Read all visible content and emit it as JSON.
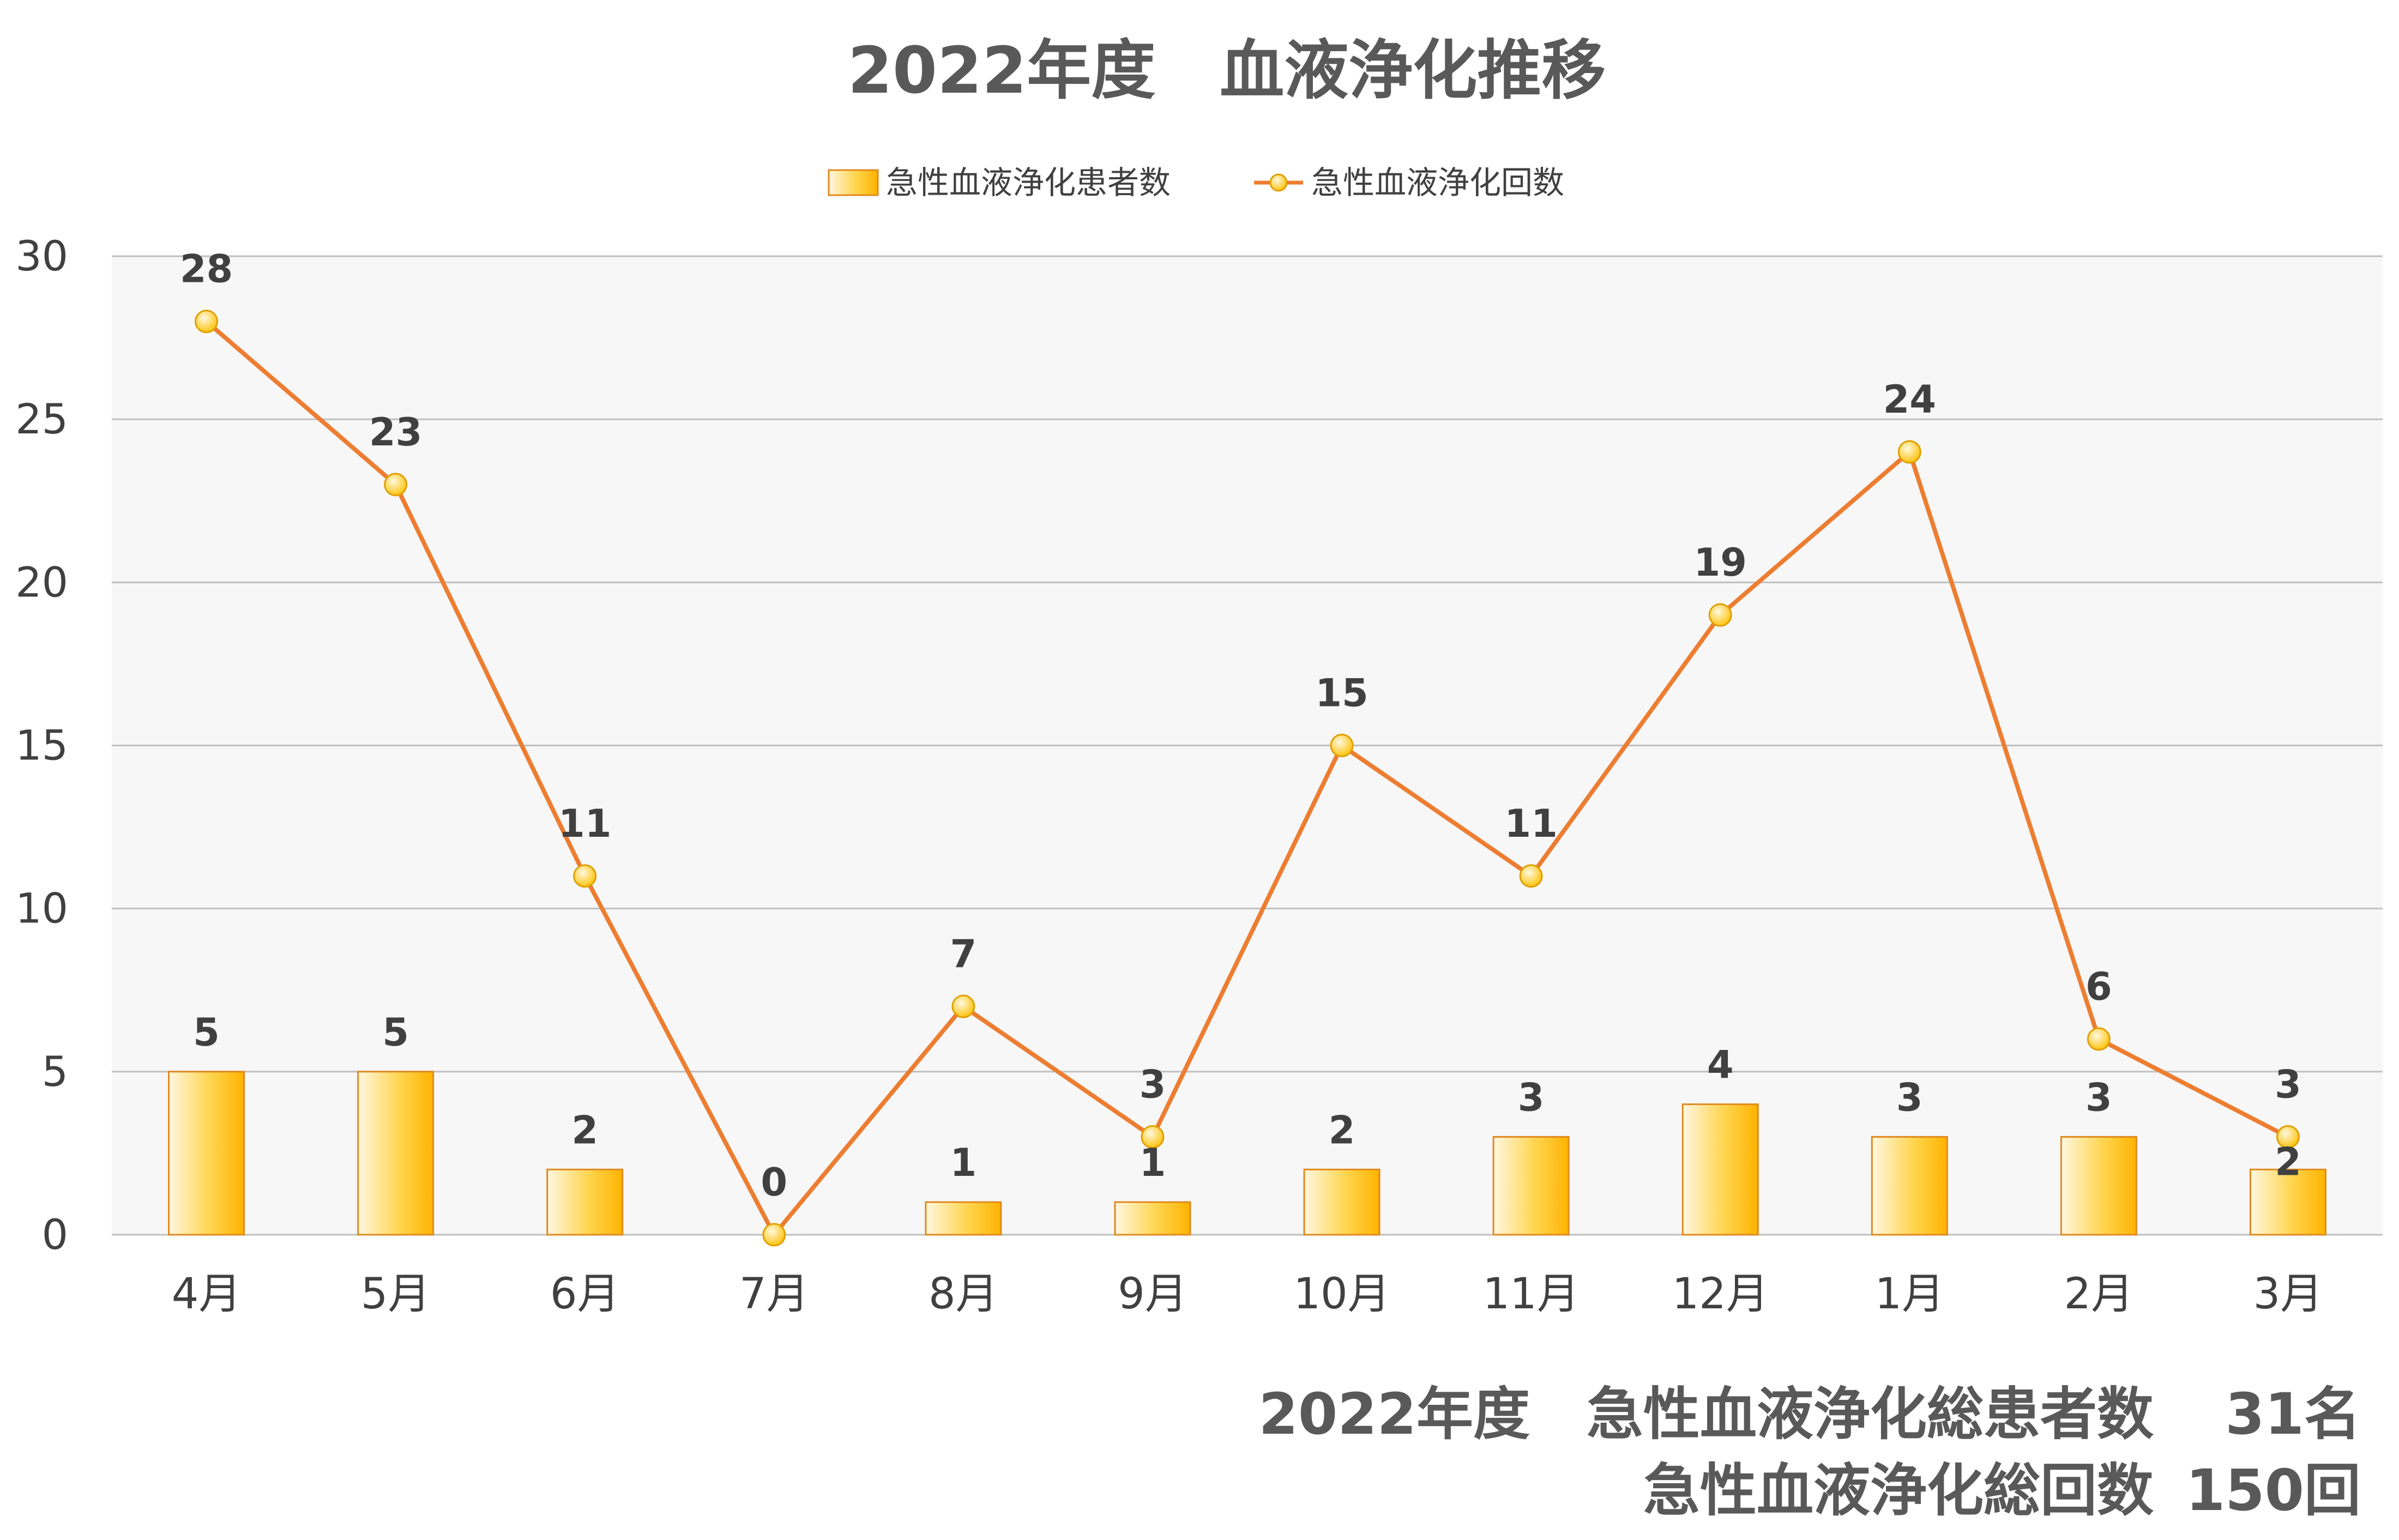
{
  "chart_data": {
    "type": "bar+line",
    "title": "2022年度　血液浄化推移",
    "categories": [
      "4月",
      "5月",
      "6月",
      "7月",
      "8月",
      "9月",
      "10月",
      "11月",
      "12月",
      "1月",
      "2月",
      "3月"
    ],
    "series": [
      {
        "name": "急性血液浄化患者数",
        "type": "bar",
        "values": [
          5,
          5,
          2,
          0,
          1,
          1,
          2,
          3,
          4,
          3,
          3,
          2
        ]
      },
      {
        "name": "急性血液浄化回数",
        "type": "line",
        "values": [
          28,
          23,
          11,
          0,
          7,
          3,
          15,
          11,
          19,
          24,
          6,
          3
        ]
      }
    ],
    "ylim": [
      0,
      30
    ],
    "yticks": [
      0,
      5,
      10,
      15,
      20,
      25,
      30
    ],
    "grid": true,
    "legend_position": "top",
    "colors": {
      "bar": "#FFC000",
      "bar_edge": "#E08A1E",
      "line": "#ED7D31",
      "marker": "#FFD966",
      "plot_bg": "#F7F7F7",
      "grid": "#BFBFBF"
    }
  },
  "summary": {
    "line1_label": "2022年度　急性血液浄化総患者数",
    "line1_value": "31名",
    "line2_label": "急性血液浄化総回数",
    "line2_value": "150回"
  }
}
